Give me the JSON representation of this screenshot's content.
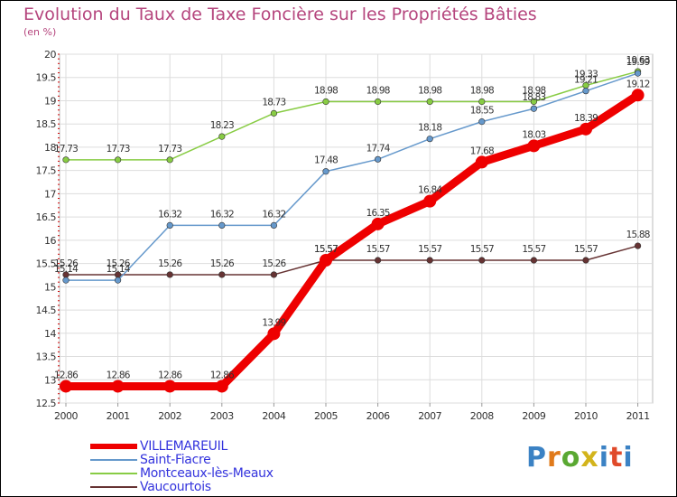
{
  "title": "Evolution du Taux de Taxe Foncière sur les Propriétés Bâties",
  "subtitle": "(en %)",
  "logo_text": "Proxiti",
  "chart_data": {
    "type": "line",
    "title": "Evolution du Taux de Taxe Foncière sur les Propriétés Bâties",
    "ylabel": "(en %)",
    "xlabel": "",
    "x": [
      "2000",
      "2001",
      "2002",
      "2003",
      "2004",
      "2005",
      "2006",
      "2007",
      "2008",
      "2009",
      "2010",
      "2011"
    ],
    "ylim": [
      12.5,
      20
    ],
    "yticks": [
      "12.5",
      "13",
      "13.5",
      "14",
      "14.5",
      "15",
      "15.5",
      "16",
      "16.5",
      "17",
      "17.5",
      "18",
      "18.5",
      "19",
      "19.5",
      "20"
    ],
    "series": [
      {
        "name": "VILLEMAREUIL",
        "color": "#ee0000",
        "values": [
          12.86,
          12.86,
          12.86,
          12.86,
          13.99,
          15.57,
          16.35,
          16.84,
          17.68,
          18.03,
          18.39,
          19.12
        ]
      },
      {
        "name": "Saint-Fiacre",
        "color": "#6699cc",
        "values": [
          15.14,
          15.14,
          16.32,
          16.32,
          16.32,
          17.48,
          17.74,
          18.18,
          18.55,
          18.83,
          19.21,
          19.59
        ]
      },
      {
        "name": "Montceaux-lès-Meaux",
        "color": "#88cc44",
        "values": [
          17.73,
          17.73,
          17.73,
          18.23,
          18.73,
          18.98,
          18.98,
          18.98,
          18.98,
          18.98,
          19.33,
          19.63
        ]
      },
      {
        "name": "Vaucourtois",
        "color": "#663333",
        "values": [
          15.26,
          15.26,
          15.26,
          15.26,
          15.26,
          15.57,
          15.57,
          15.57,
          15.57,
          15.57,
          15.57,
          15.88
        ]
      }
    ]
  }
}
